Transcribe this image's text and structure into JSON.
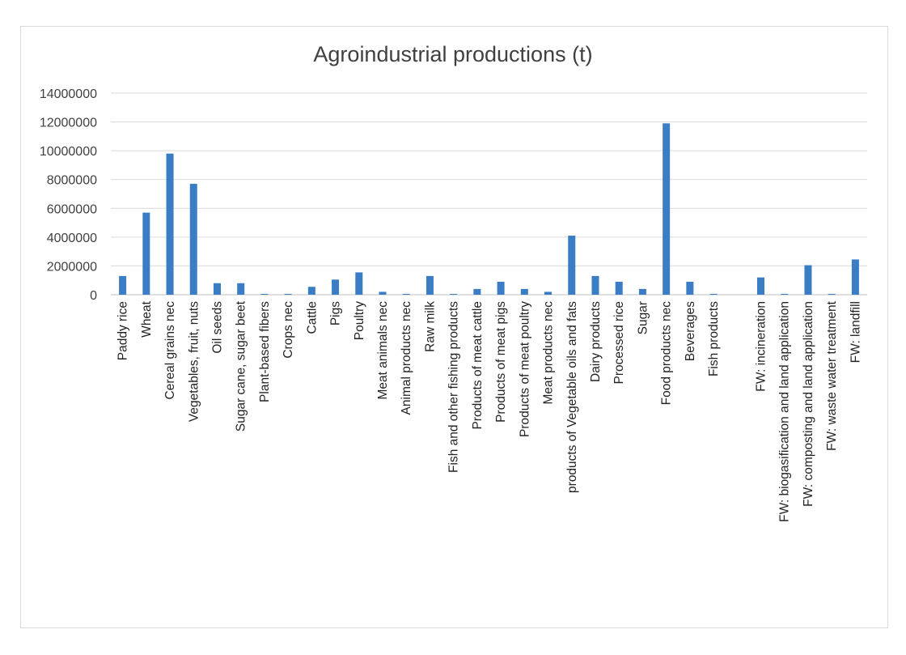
{
  "chart_data": {
    "type": "bar",
    "title": "Agroindustrial productions (t)",
    "xlabel": "",
    "ylabel": "",
    "ylim": [
      0,
      14000000
    ],
    "yticks": [
      "0",
      "2000000",
      "4000000",
      "6000000",
      "8000000",
      "10000000",
      "12000000",
      "14000000"
    ],
    "grid": true,
    "legend": "none",
    "bar_color": "#3a7dc4",
    "categories": [
      "Paddy rice",
      "Wheat",
      "Cereal grains nec",
      "Vegetables, fruit, nuts",
      "Oil seeds",
      "Sugar cane, sugar beet",
      "Plant-based fibers",
      "Crops nec",
      "Cattle",
      "Pigs",
      "Poultry",
      "Meat animals nec",
      "Animal products nec",
      "Raw milk",
      "Fish and other fishing products",
      "Products of meat cattle",
      "Products of meat pigs",
      "Products of meat poultry",
      "Meat products nec",
      "products of Vegetable oils and fats",
      "Dairy products",
      "Processed rice",
      "Sugar",
      "Food products nec",
      "Beverages",
      "Fish products",
      "",
      "FW: incineration",
      "FW: biogasification and land application",
      "FW: composting and land application",
      "FW: waste water treatment",
      "FW: landfill"
    ],
    "values": [
      1300000,
      5700000,
      9800000,
      7700000,
      800000,
      800000,
      30000,
      40000,
      550000,
      1050000,
      1550000,
      200000,
      40000,
      1300000,
      30000,
      400000,
      900000,
      400000,
      200000,
      4100000,
      1300000,
      900000,
      400000,
      11900000,
      900000,
      50000,
      0,
      1200000,
      30000,
      2050000,
      40000,
      2450000
    ]
  }
}
